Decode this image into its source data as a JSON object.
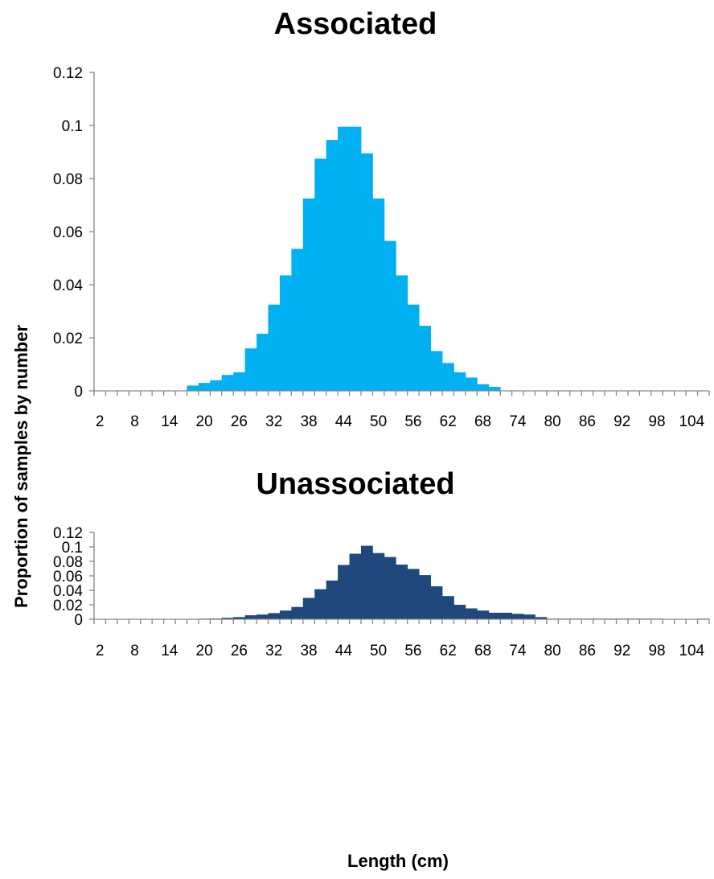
{
  "shared": {
    "ylabel": "Proportion of samples  by number",
    "xlabel": "Length (cm)"
  },
  "chart_data": [
    {
      "type": "bar",
      "title": "Associated",
      "color": "#00b0f0",
      "ylim": [
        0,
        0.12
      ],
      "yticks": [
        "0",
        "0.02",
        "0.04",
        "0.06",
        "0.08",
        "0.1",
        "0.12"
      ],
      "xtick_labels": [
        "2",
        "8",
        "14",
        "20",
        "26",
        "32",
        "38",
        "44",
        "50",
        "56",
        "62",
        "68",
        "74",
        "80",
        "86",
        "92",
        "98",
        "104"
      ],
      "categories": [
        2,
        4,
        6,
        8,
        10,
        12,
        14,
        16,
        18,
        20,
        22,
        24,
        26,
        28,
        30,
        32,
        34,
        36,
        38,
        40,
        42,
        44,
        46,
        48,
        50,
        52,
        54,
        56,
        58,
        60,
        62,
        64,
        66,
        68,
        70,
        72,
        74,
        76,
        78,
        80,
        82,
        84,
        86,
        88,
        90,
        92,
        94,
        96,
        98,
        100,
        102,
        104,
        106
      ],
      "values": [
        0,
        0,
        0,
        0,
        0,
        0,
        0,
        0,
        0.002,
        0.003,
        0.004,
        0.006,
        0.007,
        0.016,
        0.0215,
        0.0325,
        0.0435,
        0.0535,
        0.0725,
        0.0875,
        0.0945,
        0.0995,
        0.0995,
        0.0895,
        0.0725,
        0.0565,
        0.0435,
        0.0325,
        0.0245,
        0.015,
        0.0105,
        0.007,
        0.005,
        0.0025,
        0.0015,
        0,
        0,
        0,
        0,
        0,
        0,
        0,
        0,
        0,
        0,
        0,
        0,
        0,
        0,
        0,
        0,
        0,
        0
      ]
    },
    {
      "type": "bar",
      "title": "Unassociated",
      "color": "#1f497d",
      "ylim": [
        0,
        0.12
      ],
      "yticks": [
        "0",
        "0.02",
        "0.04",
        "0.06",
        "0.08",
        "0.1",
        "0.12"
      ],
      "xtick_labels": [
        "2",
        "8",
        "14",
        "20",
        "26",
        "32",
        "38",
        "44",
        "50",
        "56",
        "62",
        "68",
        "74",
        "80",
        "86",
        "92",
        "98",
        "104"
      ],
      "categories": [
        2,
        4,
        6,
        8,
        10,
        12,
        14,
        16,
        18,
        20,
        22,
        24,
        26,
        28,
        30,
        32,
        34,
        36,
        38,
        40,
        42,
        44,
        46,
        48,
        50,
        52,
        54,
        56,
        58,
        60,
        62,
        64,
        66,
        68,
        70,
        72,
        74,
        76,
        78,
        80,
        82,
        84,
        86,
        88,
        90,
        92,
        94,
        96,
        98,
        100,
        102,
        104,
        106
      ],
      "values": [
        0,
        0,
        0,
        0,
        0,
        0,
        0,
        0,
        0.0005,
        0.0008,
        0.001,
        0.002,
        0.003,
        0.0055,
        0.0065,
        0.0085,
        0.012,
        0.017,
        0.0295,
        0.0415,
        0.0535,
        0.075,
        0.0905,
        0.1015,
        0.0915,
        0.086,
        0.0755,
        0.0695,
        0.061,
        0.0455,
        0.032,
        0.02,
        0.015,
        0.012,
        0.009,
        0.009,
        0.0075,
        0.0065,
        0.003,
        0.0008,
        0.0008,
        0.0008,
        0.0008,
        0.0008,
        0.0008,
        0.0008,
        0.0008,
        0.0008,
        0.0008,
        0,
        0,
        0,
        0.0008
      ]
    }
  ]
}
